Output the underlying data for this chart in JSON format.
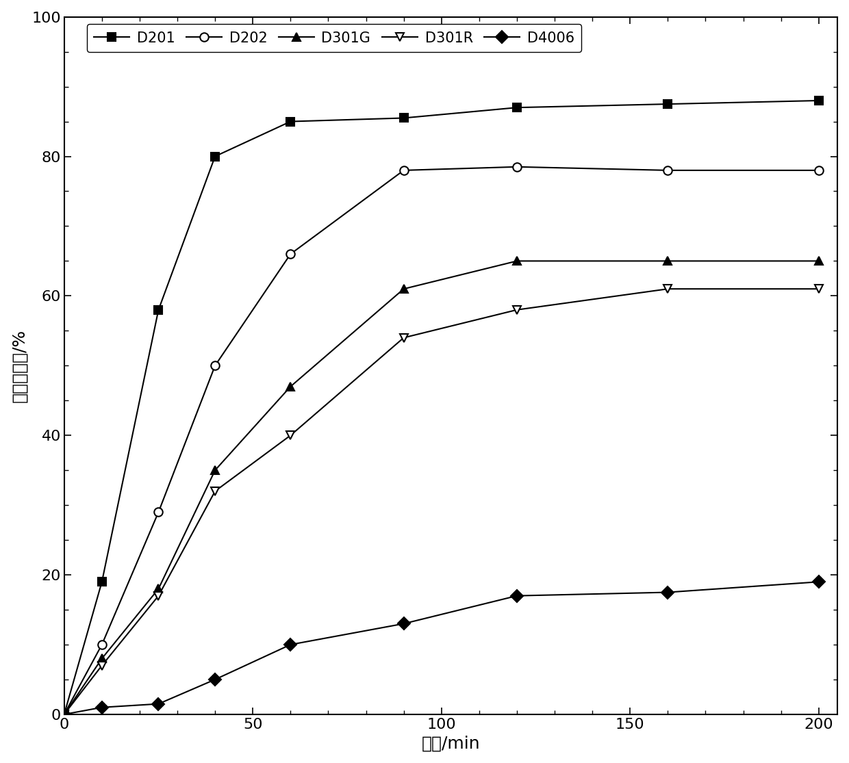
{
  "series": {
    "D201": {
      "x": [
        0,
        10,
        25,
        40,
        60,
        90,
        120,
        160,
        200
      ],
      "y": [
        0,
        19,
        58,
        80,
        85,
        85.5,
        87,
        87.5,
        88
      ],
      "marker": "s",
      "markersize": 9,
      "label": "D201",
      "filled": true
    },
    "D202": {
      "x": [
        0,
        10,
        25,
        40,
        60,
        90,
        120,
        160,
        200
      ],
      "y": [
        0,
        10,
        29,
        50,
        66,
        78,
        78.5,
        78,
        78
      ],
      "marker": "o",
      "markersize": 9,
      "label": "D202",
      "filled": false
    },
    "D301G": {
      "x": [
        0,
        10,
        25,
        40,
        60,
        90,
        120,
        160,
        200
      ],
      "y": [
        0,
        8,
        18,
        35,
        47,
        61,
        65,
        65,
        65
      ],
      "marker": "^",
      "markersize": 9,
      "label": "D301G",
      "filled": true
    },
    "D301R": {
      "x": [
        0,
        10,
        25,
        40,
        60,
        90,
        120,
        160,
        200
      ],
      "y": [
        0,
        7,
        17,
        32,
        40,
        54,
        58,
        61,
        61
      ],
      "marker": "v",
      "markersize": 9,
      "label": "D301R",
      "filled": false
    },
    "D4006": {
      "x": [
        0,
        10,
        25,
        40,
        60,
        90,
        120,
        160,
        200
      ],
      "y": [
        0,
        1,
        1.5,
        5,
        10,
        13,
        17,
        17.5,
        19
      ],
      "marker": "D",
      "markersize": 9,
      "label": "D4006",
      "filled": true
    }
  },
  "xlabel": "时间/min",
  "ylabel": "己酸洗脱率/%",
  "xlim": [
    0,
    205
  ],
  "ylim": [
    0,
    100
  ],
  "xticks_major": [
    0,
    50,
    100,
    150,
    200
  ],
  "yticks_major": [
    0,
    20,
    40,
    60,
    80,
    100
  ],
  "color": "black",
  "linewidth": 1.5,
  "figsize": [
    12.4,
    11.15
  ],
  "dpi": 100
}
